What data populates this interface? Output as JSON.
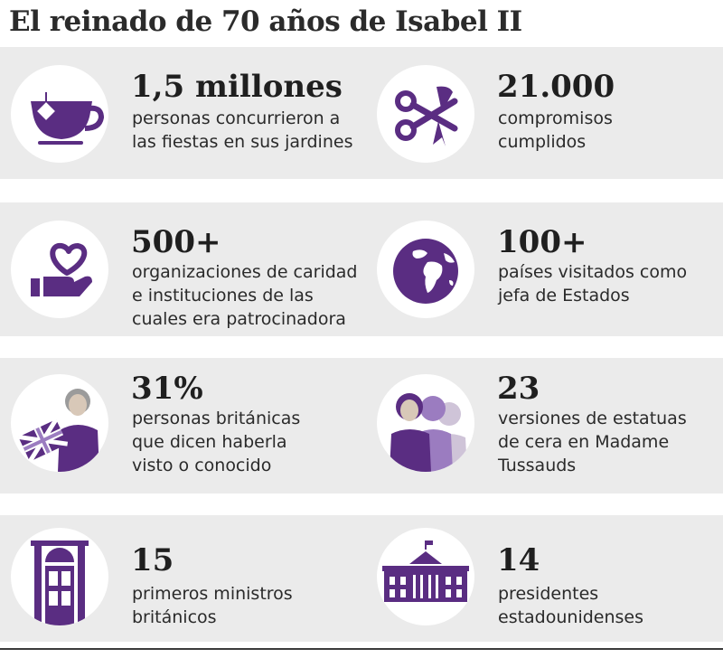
{
  "title": "El reinado de 70 años de Isabel II",
  "colors": {
    "accent": "#5a2d82",
    "accent_light": "#9b7cc0",
    "band": "#ebebeb"
  },
  "stats": [
    {
      "icon": "teacup-icon",
      "value": "1,5 millones",
      "lines": [
        "personas concurrieron a",
        "las fiestas en sus jardines"
      ]
    },
    {
      "icon": "scissors-ribbon-icon",
      "value": "21.000",
      "lines": [
        "compromisos",
        "cumplidos"
      ]
    },
    {
      "icon": "heart-hand-icon",
      "value": "500+",
      "lines": [
        "organizaciones de caridad",
        "e instituciones de las",
        "cuales era patrocinadora"
      ]
    },
    {
      "icon": "globe-icon",
      "value": "100+",
      "lines": [
        "países visitados como",
        "jefa de Estados"
      ]
    },
    {
      "icon": "woman-flag-icon",
      "value": "31%",
      "lines": [
        "personas británicas",
        "que dicen haberla",
        "visto o conocido"
      ]
    },
    {
      "icon": "wax-figures-icon",
      "value": "23",
      "lines": [
        "versiones de estatuas",
        "de cera en Madame",
        "Tussauds"
      ]
    },
    {
      "icon": "door-icon",
      "value": "15",
      "lines": [
        "primeros ministros",
        "británicos"
      ]
    },
    {
      "icon": "white-house-icon",
      "value": "14",
      "lines": [
        "presidentes",
        "estadounidenses"
      ]
    }
  ]
}
